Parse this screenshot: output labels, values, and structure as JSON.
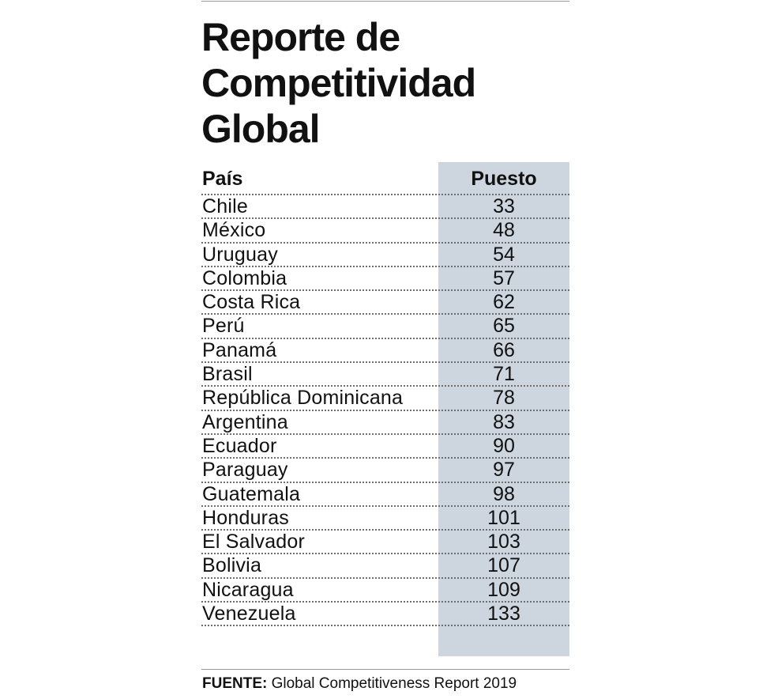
{
  "title_lines": [
    "Reporte de",
    "Competitividad",
    "Global"
  ],
  "headers": {
    "country": "País",
    "rank": "Puesto"
  },
  "source": {
    "label": "FUENTE:",
    "text": " Global Competitiveness Report 2019"
  },
  "colors": {
    "rank_band": "#cdd5df",
    "text": "#111111",
    "rule": "#6e6e6e"
  },
  "chart_data": {
    "type": "table",
    "title": "Reporte de Competitividad Global",
    "columns": [
      "País",
      "Puesto"
    ],
    "rows": [
      {
        "country": "Chile",
        "rank": "33"
      },
      {
        "country": "México",
        "rank": "48"
      },
      {
        "country": "Uruguay",
        "rank": "54"
      },
      {
        "country": "Colombia",
        "rank": "57"
      },
      {
        "country": "Costa Rica",
        "rank": "62"
      },
      {
        "country": "Perú",
        "rank": "65"
      },
      {
        "country": "Panamá",
        "rank": "66"
      },
      {
        "country": "Brasil",
        "rank": "71"
      },
      {
        "country": "República Dominicana",
        "rank": "78"
      },
      {
        "country": "Argentina",
        "rank": "83"
      },
      {
        "country": "Ecuador",
        "rank": "90"
      },
      {
        "country": "Paraguay",
        "rank": "97"
      },
      {
        "country": "Guatemala",
        "rank": "98"
      },
      {
        "country": "Honduras",
        "rank": "101"
      },
      {
        "country": "El Salvador",
        "rank": "103"
      },
      {
        "country": "Bolivia",
        "rank": "107"
      },
      {
        "country": "Nicaragua",
        "rank": "109"
      },
      {
        "country": "Venezuela",
        "rank": "133"
      }
    ]
  }
}
